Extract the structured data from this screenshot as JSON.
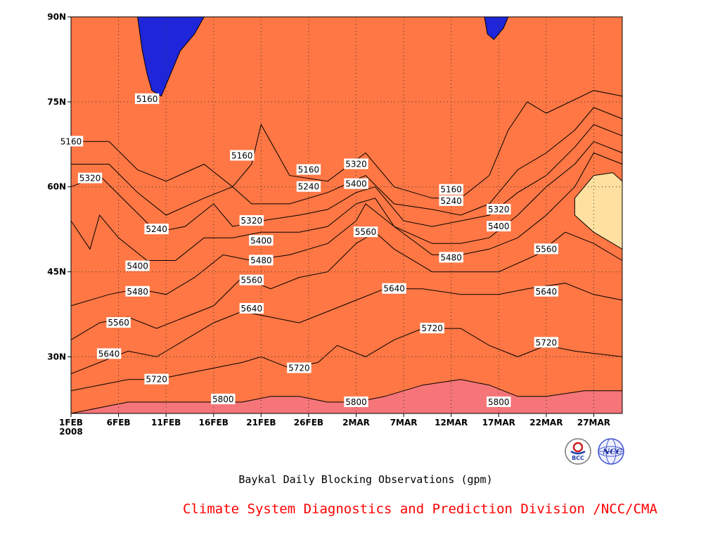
{
  "caption": "Baykal Daily Blocking Observations (gpm)",
  "credit": "Climate System Diagnostics and Prediction Division /NCC/CMA",
  "logos": [
    {
      "name": "bcc-logo",
      "text": "BCC"
    },
    {
      "name": "ncc-logo",
      "text": "NCC"
    }
  ],
  "chart_data": {
    "type": "heatmap",
    "title": "Baykal Daily Blocking Observations (gpm)",
    "xlabel": "",
    "ylabel": "",
    "x_ticks": [
      "1FEB\n2008",
      "6FEB",
      "11FEB",
      "16FEB",
      "21FEB",
      "26FEB",
      "2MAR",
      "7MAR",
      "12MAR",
      "17MAR",
      "22MAR",
      "27MAR"
    ],
    "y_ticks": [
      "30N",
      "45N",
      "60N",
      "75N",
      "90N"
    ],
    "y_tick_values": [
      30,
      45,
      60,
      75,
      90
    ],
    "ylim": [
      20,
      90
    ],
    "x_range": [
      "2008-02-01",
      "2008-03-30"
    ],
    "grid": true,
    "contour_levels": [
      5160,
      5240,
      5320,
      5400,
      5480,
      5560,
      5640,
      5720,
      5800
    ],
    "colors": [
      "#0f1f78",
      "#1f25d8",
      "#4a4ae8",
      "#5a8ee6",
      "#55bdf2",
      "#ffff88",
      "#ffe0a0",
      "#ffa86a",
      "#ff7744",
      "#f57578"
    ],
    "contour_labels": [
      {
        "value": 5160,
        "date": "2008-02-09",
        "lat": 75.5
      },
      {
        "value": 5160,
        "date": "2008-02-01",
        "lat": 68.0
      },
      {
        "value": 5160,
        "date": "2008-02-19",
        "lat": 65.5
      },
      {
        "value": 5160,
        "date": "2008-02-26",
        "lat": 63.0
      },
      {
        "value": 5160,
        "date": "2008-03-12",
        "lat": 59.5
      },
      {
        "value": 5240,
        "date": "2008-02-10",
        "lat": 52.5
      },
      {
        "value": 5240,
        "date": "2008-02-26",
        "lat": 60.0
      },
      {
        "value": 5240,
        "date": "2008-03-12",
        "lat": 57.5
      },
      {
        "value": 5320,
        "date": "2008-02-03",
        "lat": 61.5
      },
      {
        "value": 5320,
        "date": "2008-02-20",
        "lat": 54.0
      },
      {
        "value": 5320,
        "date": "2008-03-02",
        "lat": 64.0
      },
      {
        "value": 5320,
        "date": "2008-03-17",
        "lat": 56.0
      },
      {
        "value": 5400,
        "date": "2008-02-08",
        "lat": 46.0
      },
      {
        "value": 5400,
        "date": "2008-02-21",
        "lat": 50.5
      },
      {
        "value": 5400,
        "date": "2008-03-02",
        "lat": 60.5
      },
      {
        "value": 5400,
        "date": "2008-03-17",
        "lat": 53.0
      },
      {
        "value": 5480,
        "date": "2008-02-08",
        "lat": 41.5
      },
      {
        "value": 5480,
        "date": "2008-02-21",
        "lat": 47.0
      },
      {
        "value": 5480,
        "date": "2008-03-12",
        "lat": 47.5
      },
      {
        "value": 5560,
        "date": "2008-02-06",
        "lat": 36.0
      },
      {
        "value": 5560,
        "date": "2008-02-20",
        "lat": 43.5
      },
      {
        "value": 5560,
        "date": "2008-03-03",
        "lat": 52.0
      },
      {
        "value": 5560,
        "date": "2008-03-22",
        "lat": 49.0
      },
      {
        "value": 5640,
        "date": "2008-02-05",
        "lat": 30.5
      },
      {
        "value": 5640,
        "date": "2008-02-20",
        "lat": 38.5
      },
      {
        "value": 5640,
        "date": "2008-03-06",
        "lat": 42.0
      },
      {
        "value": 5640,
        "date": "2008-03-22",
        "lat": 41.5
      },
      {
        "value": 5720,
        "date": "2008-02-10",
        "lat": 26.0
      },
      {
        "value": 5720,
        "date": "2008-02-25",
        "lat": 28.0
      },
      {
        "value": 5720,
        "date": "2008-03-10",
        "lat": 35.0
      },
      {
        "value": 5720,
        "date": "2008-03-22",
        "lat": 32.5
      },
      {
        "value": 5800,
        "date": "2008-02-17",
        "lat": 22.5
      },
      {
        "value": 5800,
        "date": "2008-03-02",
        "lat": 22.0
      },
      {
        "value": 5800,
        "date": "2008-03-17",
        "lat": 22.0
      }
    ]
  }
}
